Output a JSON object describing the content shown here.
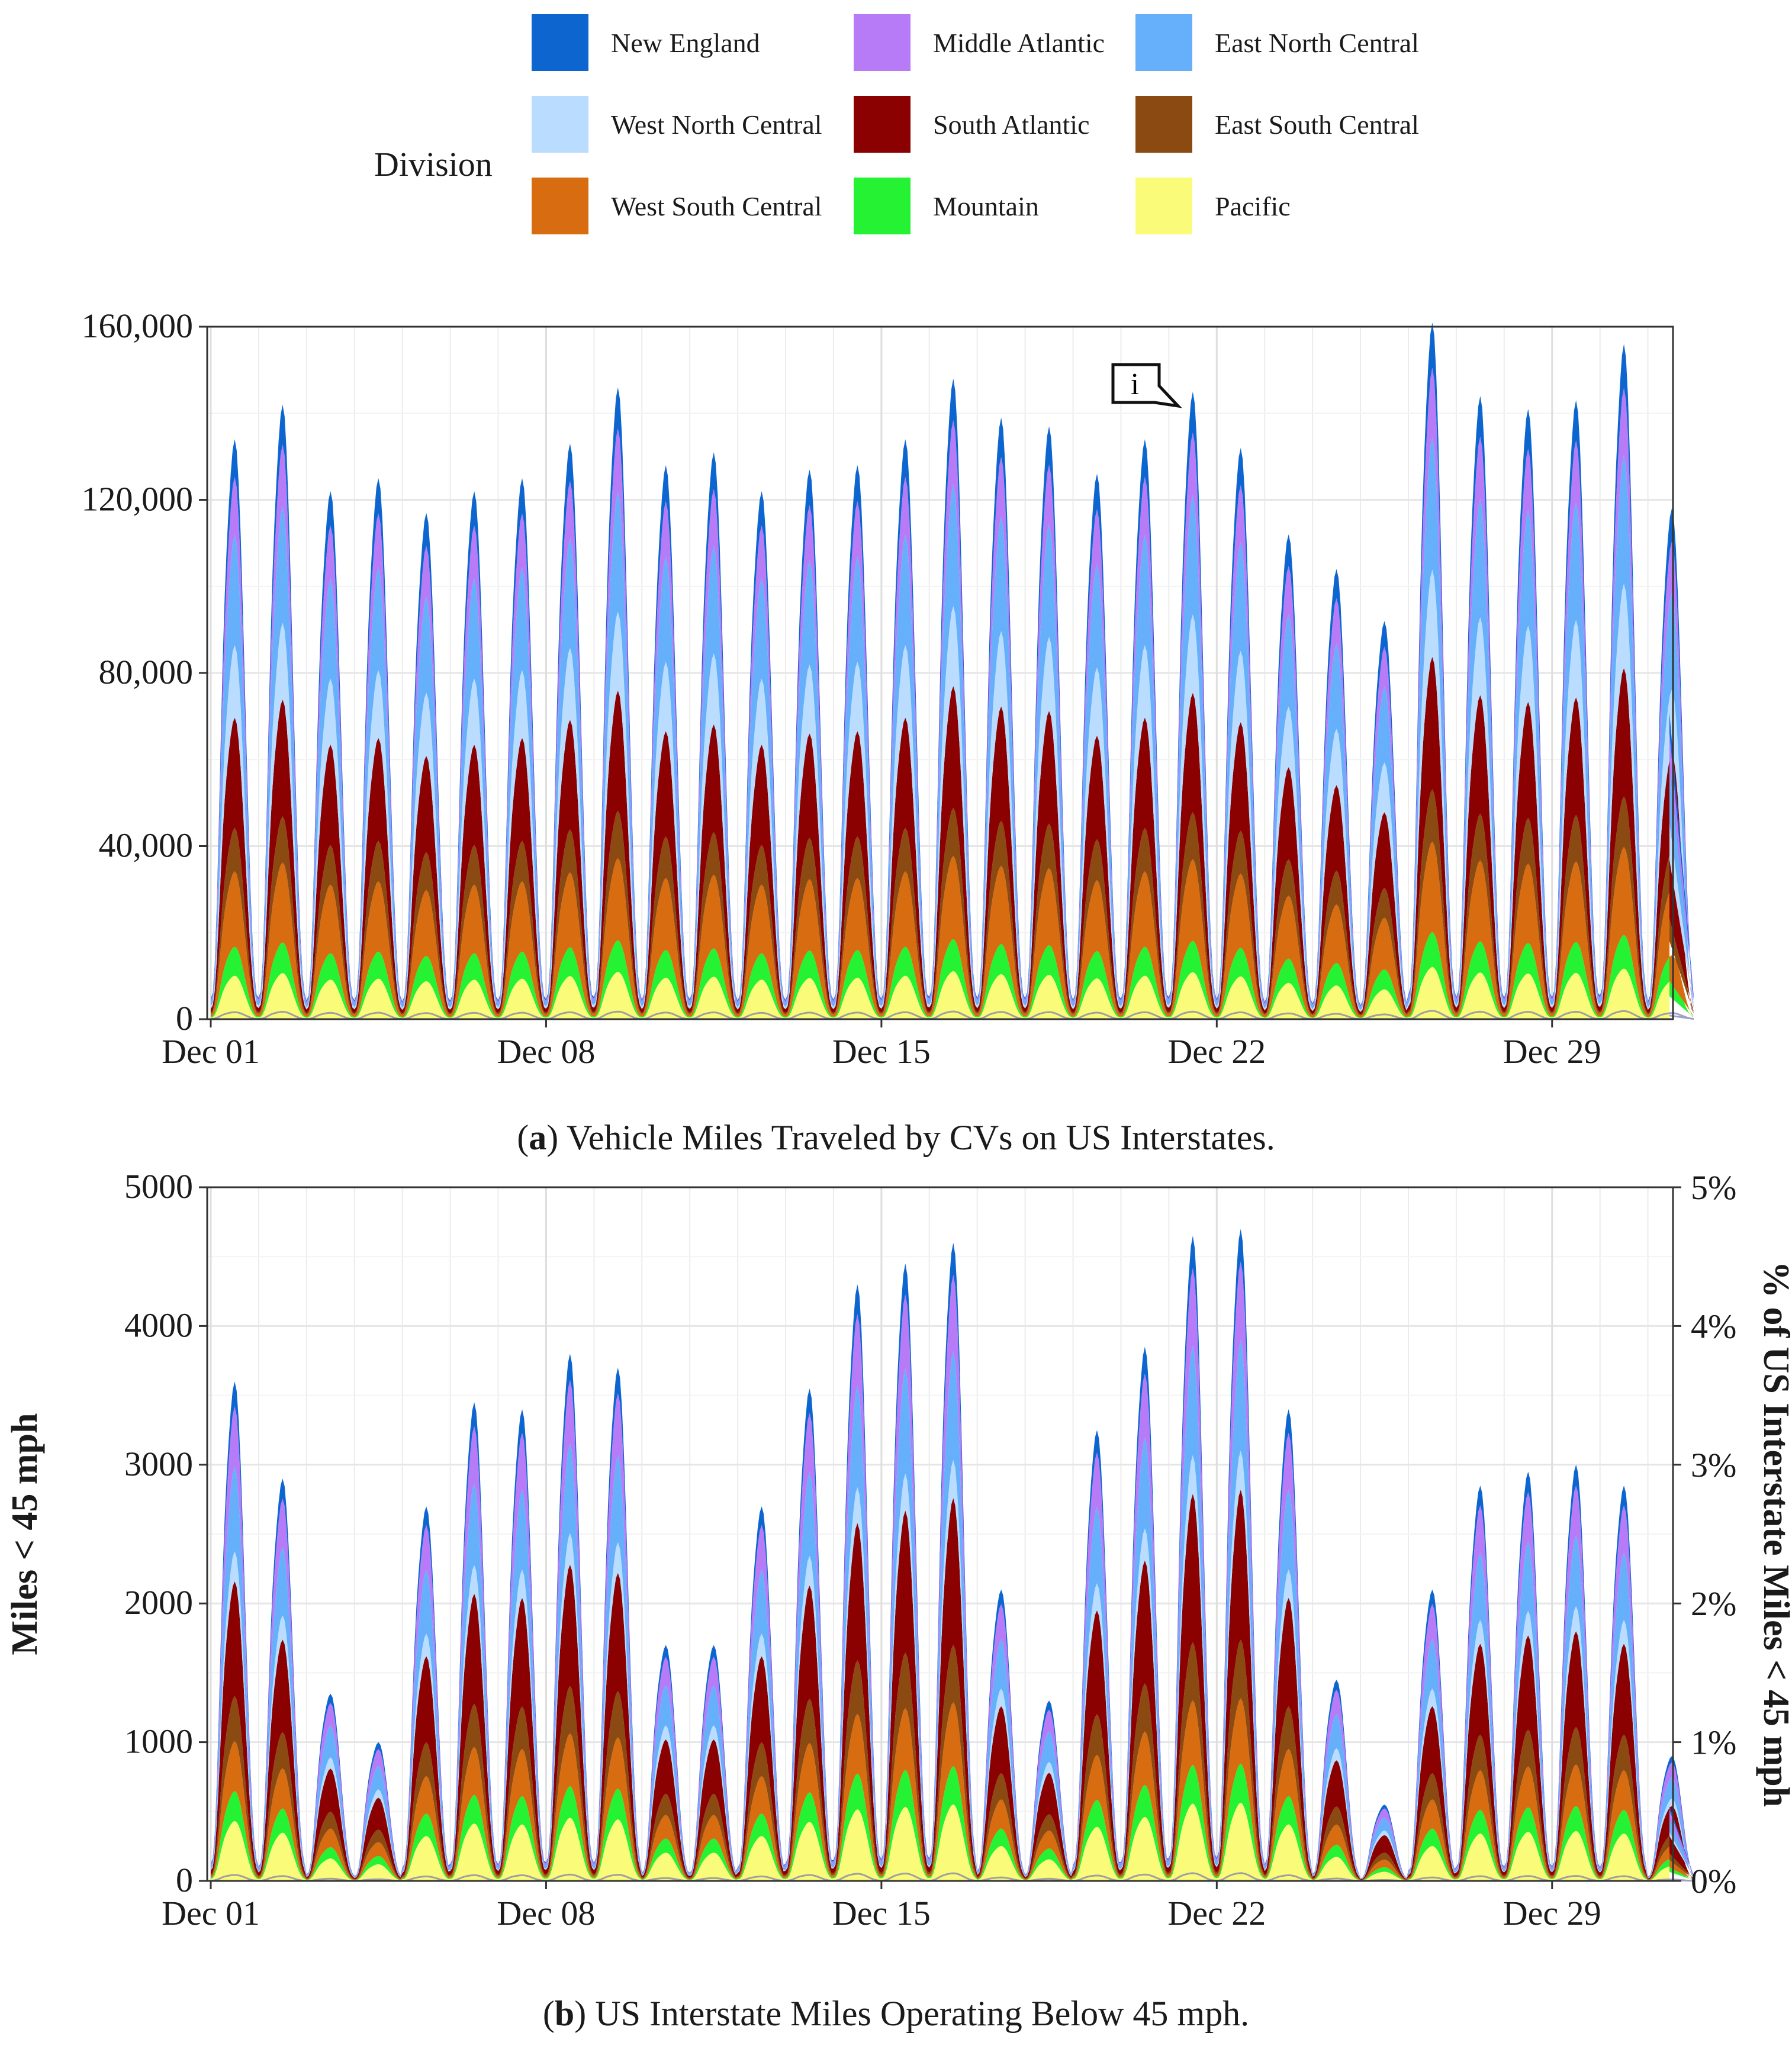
{
  "legend": {
    "title": "Division",
    "items": [
      {
        "name": "New England",
        "color": "#0d66d0"
      },
      {
        "name": "Middle Atlantic",
        "color": "#b77bf7"
      },
      {
        "name": "East North Central",
        "color": "#66b0fb"
      },
      {
        "name": "West North Central",
        "color": "#badcff"
      },
      {
        "name": "South Atlantic",
        "color": "#8b0000"
      },
      {
        "name": "East South Central",
        "color": "#8b4a12"
      },
      {
        "name": "West South Central",
        "color": "#d86c10"
      },
      {
        "name": "Mountain",
        "color": "#25f233"
      },
      {
        "name": "Pacific",
        "color": "#fbfb7a"
      }
    ]
  },
  "captions": {
    "a": {
      "letter": "a",
      "text": "Vehicle Miles Traveled by CVs on US Interstates."
    },
    "b": {
      "letter": "b",
      "text": "US Interstate Miles Operating Below 45 mph."
    }
  },
  "annotation": {
    "label": "i"
  },
  "chart_data": [
    {
      "id": "a",
      "type": "area",
      "stacked": true,
      "title": "Vehicle Miles Traveled by CVs on US Interstates.",
      "xlabel": "",
      "ylabel": "",
      "x_tick_labels": [
        "Dec 01",
        "Dec 08",
        "Dec 15",
        "Dec 22",
        "Dec 29"
      ],
      "x_tick_days": [
        1,
        8,
        15,
        22,
        29
      ],
      "y_tick_labels": [
        "0",
        "40,000",
        "80,000",
        "120,000",
        "160,000"
      ],
      "y_tick_values": [
        0,
        40000,
        80000,
        120000,
        160000
      ],
      "ylim": [
        0,
        160000
      ],
      "days": [
        1,
        31
      ],
      "daily_peak_totals": [
        134000,
        142000,
        122000,
        125000,
        117000,
        122000,
        125000,
        133000,
        146000,
        128000,
        131000,
        122000,
        127000,
        128000,
        134000,
        148000,
        139000,
        137000,
        126000,
        134000,
        145000,
        132000,
        112000,
        104000,
        92000,
        161000,
        144000,
        141000,
        143000,
        156000,
        118000
      ],
      "division_shares": [
        {
          "name": "Pacific",
          "share": 0.075
        },
        {
          "name": "Mountain",
          "share": 0.05
        },
        {
          "name": "West South Central",
          "share": 0.13
        },
        {
          "name": "East South Central",
          "share": 0.075
        },
        {
          "name": "South Atlantic",
          "share": 0.19
        },
        {
          "name": "West North Central",
          "share": 0.125
        },
        {
          "name": "East North Central",
          "share": 0.19
        },
        {
          "name": "Middle Atlantic",
          "share": 0.1
        },
        {
          "name": "New England",
          "share": 0.065
        }
      ],
      "grid": true
    },
    {
      "id": "b",
      "type": "area",
      "stacked": true,
      "title": "US Interstate Miles Operating Below 45 mph.",
      "xlabel": "",
      "ylabel": "Miles < 45 mph",
      "y2label": "% of US Interstate Miles < 45 mph",
      "x_tick_labels": [
        "Dec 01",
        "Dec 08",
        "Dec 15",
        "Dec 22",
        "Dec 29"
      ],
      "x_tick_days": [
        1,
        8,
        15,
        22,
        29
      ],
      "y_tick_labels": [
        "0",
        "1000",
        "2000",
        "3000",
        "4000",
        "5000"
      ],
      "y_tick_values": [
        0,
        1000,
        2000,
        3000,
        4000,
        5000
      ],
      "y2_tick_labels": [
        "0%",
        "1%",
        "2%",
        "3%",
        "4%",
        "5%"
      ],
      "y2_tick_values": [
        0,
        1,
        2,
        3,
        4,
        5
      ],
      "ylim": [
        0,
        5000
      ],
      "y2lim": [
        0,
        5
      ],
      "days": [
        1,
        31
      ],
      "daily_peak_totals": [
        3600,
        2900,
        1350,
        1000,
        2700,
        3450,
        3400,
        3800,
        3700,
        1700,
        1700,
        2700,
        3550,
        4300,
        4450,
        4600,
        2100,
        1300,
        3250,
        3850,
        4650,
        4700,
        3400,
        1450,
        550,
        2100,
        2850,
        2950,
        3000,
        2850,
        900
      ],
      "division_shares": [
        {
          "name": "Pacific",
          "share": 0.12
        },
        {
          "name": "Mountain",
          "share": 0.06
        },
        {
          "name": "West South Central",
          "share": 0.1
        },
        {
          "name": "East South Central",
          "share": 0.09
        },
        {
          "name": "South Atlantic",
          "share": 0.23
        },
        {
          "name": "West North Central",
          "share": 0.06
        },
        {
          "name": "East North Central",
          "share": 0.17
        },
        {
          "name": "Middle Atlantic",
          "share": 0.12
        },
        {
          "name": "New England",
          "share": 0.05
        }
      ],
      "grid": true
    }
  ]
}
